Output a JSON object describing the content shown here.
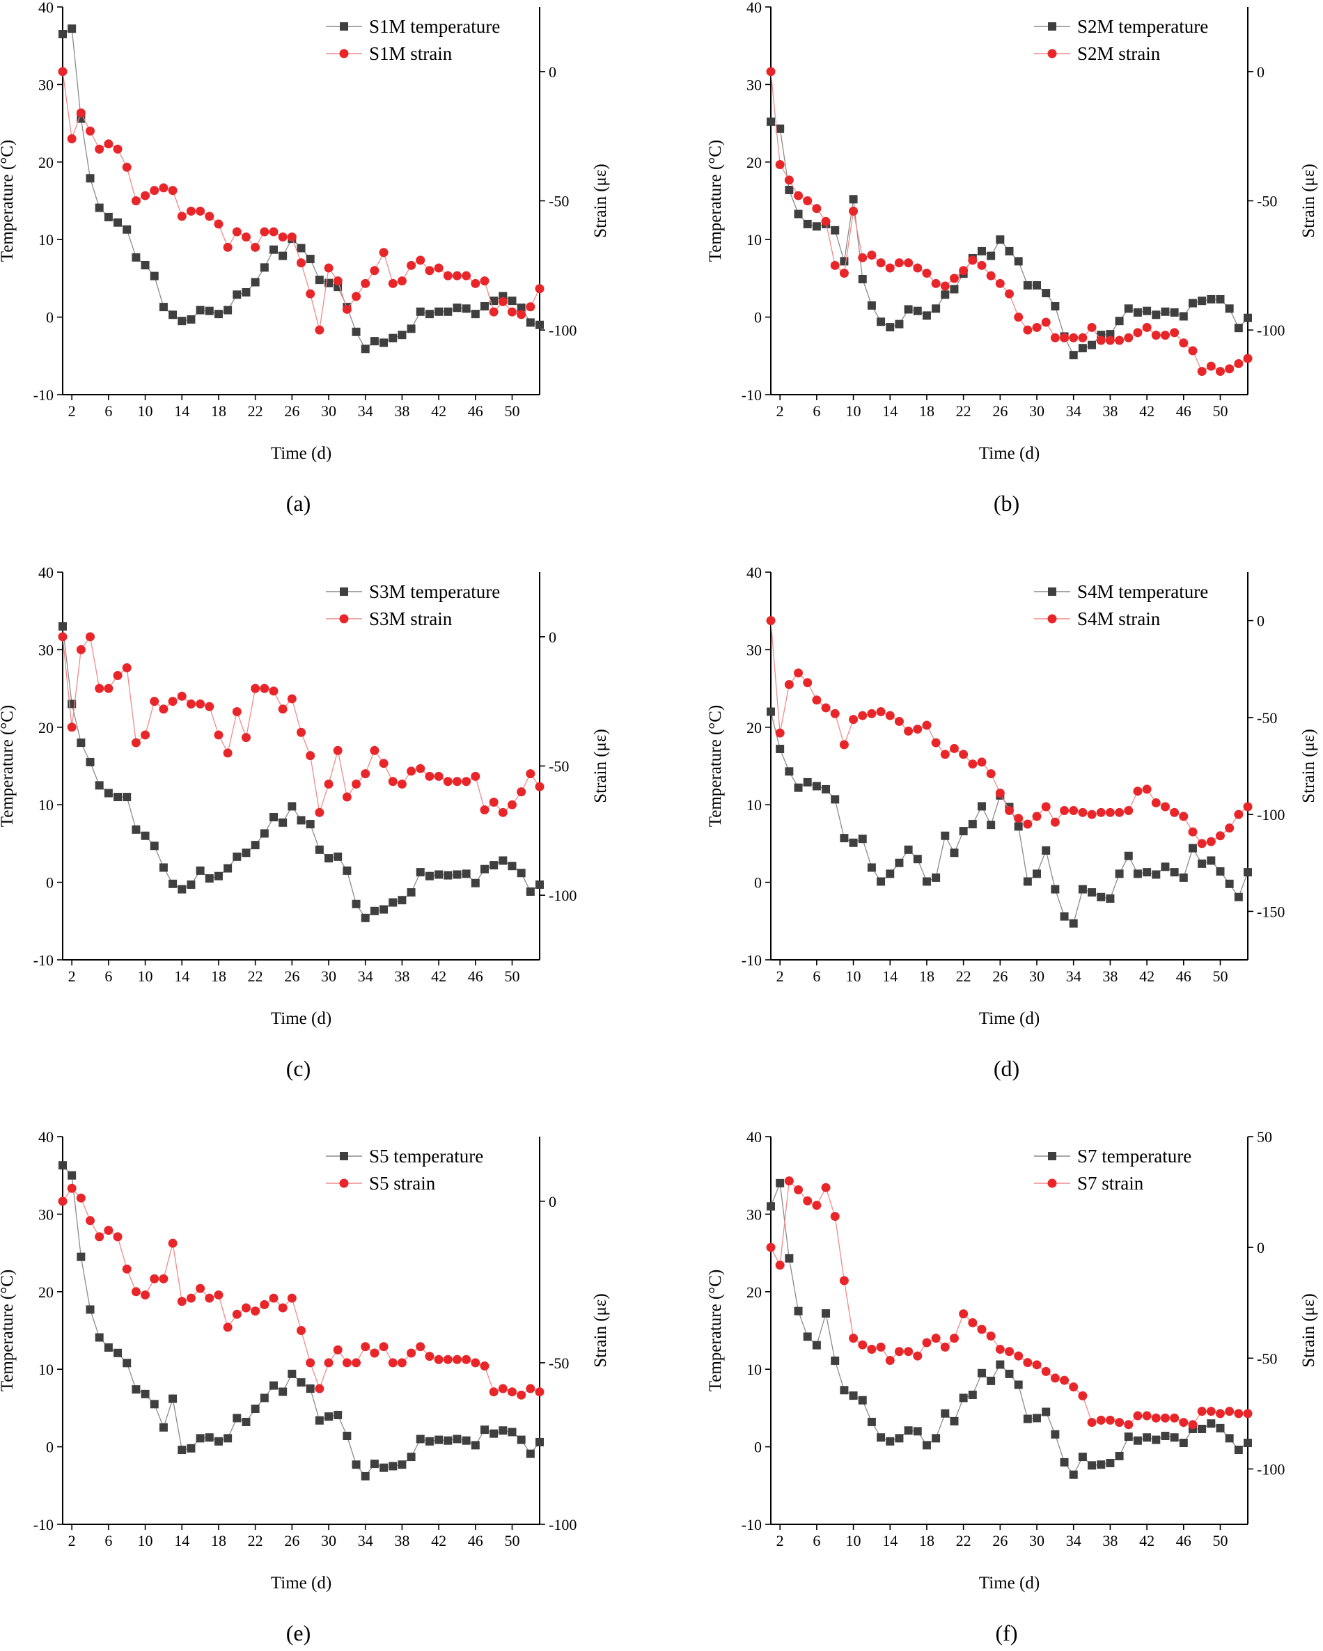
{
  "chart_data": [
    {
      "type": "line",
      "panel_label": "(a)",
      "xlabel": "Time (d)",
      "ylabel_left": "Temperature (°C)",
      "ylabel_right": "Strain (με)",
      "xlim": [
        1,
        53
      ],
      "x_ticks": [
        2,
        6,
        10,
        14,
        18,
        22,
        26,
        30,
        34,
        38,
        42,
        46,
        50
      ],
      "ylim_left": [
        -10,
        40
      ],
      "y_ticks_left": [
        -10,
        0,
        10,
        20,
        30,
        40
      ],
      "ylim_right": [
        -125,
        25
      ],
      "y_ticks_right": [
        -100,
        -50,
        0
      ],
      "legend_position": "top-right",
      "series": [
        {
          "name": "S1M temperature",
          "axis": "left",
          "color": "#3f3f3f",
          "marker": "square",
          "values": [
            36.5,
            37.2,
            25.6,
            17.9,
            14.1,
            12.9,
            12.2,
            11.3,
            7.7,
            6.7,
            5.3,
            1.3,
            0.3,
            -0.5,
            -0.3,
            0.9,
            0.8,
            0.4,
            0.9,
            2.9,
            3.2,
            4.5,
            6.4,
            8.7,
            7.9,
            10.1,
            8.9,
            7.5,
            4.8,
            4.4,
            3.9,
            1.3,
            -1.9,
            -4.1,
            -3.1,
            -3.3,
            -2.7,
            -2.3,
            -1.5,
            0.7,
            0.4,
            0.7,
            0.7,
            1.2,
            1.1,
            0.4,
            1.4,
            2.1,
            2.7,
            2.1,
            1.2,
            -0.7,
            -1.0
          ]
        },
        {
          "name": "S1M strain",
          "axis": "right",
          "color": "#e8262a",
          "marker": "circle",
          "values": [
            0,
            -26,
            -16,
            -23,
            -30,
            -28,
            -30,
            -37,
            -50,
            -48,
            -46,
            -45,
            -46,
            -56,
            -54,
            -54,
            -56,
            -59,
            -68,
            -62,
            -64,
            -68,
            -62,
            -62,
            -64,
            -64,
            -74,
            -86,
            -100,
            -76,
            -81,
            -92,
            -87,
            -82,
            -77,
            -70,
            -82,
            -81,
            -75,
            -73,
            -77,
            -76,
            -79,
            -79,
            -79,
            -82,
            -81,
            -93,
            -89,
            -93,
            -94,
            -91,
            -84
          ]
        }
      ]
    },
    {
      "type": "line",
      "panel_label": "(b)",
      "xlabel": "Time (d)",
      "ylabel_left": "Temperature (°C)",
      "ylabel_right": "Strain (με)",
      "xlim": [
        1,
        53
      ],
      "x_ticks": [
        2,
        6,
        10,
        14,
        18,
        22,
        26,
        30,
        34,
        38,
        42,
        46,
        50
      ],
      "ylim_left": [
        -10,
        40
      ],
      "y_ticks_left": [
        -10,
        0,
        10,
        20,
        30,
        40
      ],
      "ylim_right": [
        -125,
        25
      ],
      "y_ticks_right": [
        -100,
        -50,
        0
      ],
      "legend_position": "top-right",
      "series": [
        {
          "name": "S2M temperature",
          "axis": "left",
          "color": "#3f3f3f",
          "marker": "square",
          "values": [
            25.2,
            24.3,
            16.4,
            13.3,
            12.0,
            11.7,
            12.0,
            11.2,
            7.2,
            15.2,
            4.9,
            1.5,
            -0.6,
            -1.3,
            -0.9,
            1.0,
            0.8,
            0.2,
            1.1,
            2.9,
            3.6,
            5.6,
            7.6,
            8.5,
            7.9,
            10.0,
            8.5,
            7.2,
            4.1,
            4.1,
            3.1,
            1.4,
            -2.5,
            -4.9,
            -4.0,
            -3.6,
            -2.3,
            -2.2,
            -0.5,
            1.1,
            0.6,
            0.8,
            0.3,
            0.7,
            0.6,
            0.1,
            1.8,
            2.1,
            2.3,
            2.3,
            1.1,
            -1.4,
            -0.1
          ]
        },
        {
          "name": "S2M strain",
          "axis": "right",
          "color": "#e8262a",
          "marker": "circle",
          "values": [
            0,
            -36,
            -42,
            -48,
            -50,
            -53,
            -58,
            -75,
            -78,
            -54,
            -72,
            -71,
            -74,
            -76,
            -74,
            -74,
            -76,
            -78,
            -82,
            -83,
            -80,
            -77,
            -73,
            -75,
            -79,
            -82,
            -86,
            -95,
            -100,
            -99,
            -97,
            -103,
            -103,
            -103,
            -103,
            -99,
            -104,
            -104,
            -104,
            -103,
            -101,
            -99,
            -102,
            -102,
            -101,
            -105,
            -108,
            -116,
            -114,
            -116,
            -115,
            -113,
            -111
          ]
        }
      ]
    },
    {
      "type": "line",
      "panel_label": "(c)",
      "xlabel": "Time (d)",
      "ylabel_left": "Temperature (°C)",
      "ylabel_right": "Strain (με)",
      "xlim": [
        1,
        53
      ],
      "x_ticks": [
        2,
        6,
        10,
        14,
        18,
        22,
        26,
        30,
        34,
        38,
        42,
        46,
        50
      ],
      "ylim_left": [
        -10,
        40
      ],
      "y_ticks_left": [
        -10,
        0,
        10,
        20,
        30,
        40
      ],
      "ylim_right": [
        -125,
        25
      ],
      "y_ticks_right": [
        -100,
        -50,
        0
      ],
      "legend_position": "top-right",
      "series": [
        {
          "name": "S3M temperature",
          "axis": "left",
          "color": "#3f3f3f",
          "marker": "square",
          "values": [
            33.0,
            23.0,
            18.0,
            15.5,
            12.5,
            11.5,
            11.0,
            11.0,
            6.8,
            6.0,
            4.7,
            1.9,
            -0.2,
            -0.9,
            -0.3,
            1.5,
            0.5,
            0.8,
            1.8,
            3.3,
            3.8,
            4.8,
            6.3,
            8.4,
            7.7,
            9.8,
            8.0,
            7.5,
            4.2,
            3.1,
            3.3,
            1.5,
            -2.8,
            -4.6,
            -3.7,
            -3.5,
            -2.6,
            -2.3,
            -1.3,
            1.3,
            0.8,
            1.0,
            0.9,
            1.0,
            1.1,
            -0.1,
            1.7,
            2.2,
            2.8,
            2.1,
            1.2,
            -1.2,
            -0.3
          ]
        },
        {
          "name": "S3M strain",
          "axis": "right",
          "color": "#e8262a",
          "marker": "circle",
          "values": [
            0,
            -35,
            -5,
            0,
            -20,
            -20,
            -15,
            -12,
            -41,
            -38,
            -25,
            -28,
            -25,
            -23,
            -26,
            -26,
            -27,
            -38,
            -45,
            -29,
            -39,
            -20,
            -20,
            -21,
            -28,
            -24,
            -37,
            -46,
            -68,
            -57,
            -44,
            -62,
            -57,
            -53,
            -44,
            -49,
            -56,
            -57,
            -52,
            -51,
            -54,
            -54,
            -56,
            -56,
            -56,
            -54,
            -67,
            -64,
            -68,
            -65,
            -60,
            -53,
            -58
          ]
        }
      ]
    },
    {
      "type": "line",
      "panel_label": "(d)",
      "xlabel": "Time (d)",
      "ylabel_left": "Temperature (°C)",
      "ylabel_right": "Strain (με)",
      "xlim": [
        1,
        53
      ],
      "x_ticks": [
        2,
        6,
        10,
        14,
        18,
        22,
        26,
        30,
        34,
        38,
        42,
        46,
        50
      ],
      "ylim_left": [
        -10,
        40
      ],
      "y_ticks_left": [
        -10,
        0,
        10,
        20,
        30,
        40
      ],
      "ylim_right": [
        -175,
        25
      ],
      "y_ticks_right": [
        -150,
        -100,
        -50,
        0
      ],
      "legend_position": "top-right",
      "series": [
        {
          "name": "S4M temperature",
          "axis": "left",
          "color": "#3f3f3f",
          "marker": "square",
          "values": [
            22.0,
            17.2,
            14.3,
            12.2,
            12.9,
            12.4,
            12.0,
            10.7,
            5.7,
            5.1,
            5.6,
            1.9,
            0.1,
            1.1,
            2.5,
            4.2,
            3.0,
            0.1,
            0.6,
            6.0,
            3.8,
            6.6,
            7.5,
            9.8,
            7.4,
            11.2,
            9.7,
            7.2,
            0.1,
            1.1,
            4.1,
            -0.9,
            -4.4,
            -5.3,
            -0.9,
            -1.3,
            -1.9,
            -2.1,
            1.1,
            3.4,
            1.1,
            1.3,
            1.0,
            2.0,
            1.3,
            0.6,
            4.4,
            2.4,
            2.8,
            1.4,
            -0.2,
            -1.9,
            1.3
          ]
        },
        {
          "name": "S4M strain",
          "axis": "right",
          "color": "#e8262a",
          "marker": "circle",
          "values": [
            0,
            -58,
            -33,
            -27,
            -32,
            -41,
            -45,
            -48,
            -64,
            -51,
            -49,
            -48,
            -47,
            -49,
            -52,
            -57,
            -56,
            -54,
            -63,
            -69,
            -66,
            -69,
            -74,
            -73,
            -79,
            -89,
            -98,
            -102,
            -105,
            -101,
            -96,
            -104,
            -98,
            -98,
            -99,
            -100,
            -99,
            -99,
            -99,
            -98,
            -88,
            -87,
            -94,
            -96,
            -99,
            -101,
            -109,
            -115,
            -114,
            -111,
            -107,
            -100,
            -96
          ]
        }
      ]
    },
    {
      "type": "line",
      "panel_label": "(e)",
      "xlabel": "Time (d)",
      "ylabel_left": "Temperature (°C)",
      "ylabel_right": "Strain (με)",
      "xlim": [
        1,
        53
      ],
      "x_ticks": [
        2,
        6,
        10,
        14,
        18,
        22,
        26,
        30,
        34,
        38,
        42,
        46,
        50
      ],
      "ylim_left": [
        -10,
        40
      ],
      "y_ticks_left": [
        -10,
        0,
        10,
        20,
        30,
        40
      ],
      "ylim_right": [
        -100,
        20
      ],
      "y_ticks_right": [
        -100,
        -50,
        0
      ],
      "legend_position": "top-right",
      "series": [
        {
          "name": "S5 temperature",
          "axis": "left",
          "color": "#3f3f3f",
          "marker": "square",
          "values": [
            36.3,
            35.0,
            24.5,
            17.7,
            14.1,
            12.8,
            12.1,
            10.8,
            7.4,
            6.8,
            5.5,
            2.5,
            6.2,
            -0.4,
            -0.2,
            1.1,
            1.2,
            0.7,
            1.1,
            3.7,
            3.2,
            4.9,
            6.3,
            7.9,
            7.1,
            9.4,
            8.3,
            7.5,
            3.4,
            3.9,
            4.1,
            1.4,
            -2.3,
            -3.8,
            -2.2,
            -2.7,
            -2.5,
            -2.3,
            -1.3,
            1.0,
            0.7,
            0.9,
            0.8,
            1.0,
            0.8,
            0.2,
            2.2,
            1.7,
            2.1,
            1.9,
            0.9,
            -0.9,
            0.6
          ]
        },
        {
          "name": "S5 strain",
          "axis": "right",
          "color": "#e8262a",
          "marker": "circle",
          "values": [
            0,
            4,
            1,
            -6,
            -11,
            -9,
            -11,
            -21,
            -28,
            -29,
            -24,
            -24,
            -13,
            -31,
            -30,
            -27,
            -30,
            -29,
            -39,
            -35,
            -33,
            -34,
            -32,
            -30,
            -33,
            -30,
            -40,
            -50,
            -58,
            -50,
            -46,
            -50,
            -50,
            -45,
            -47,
            -45,
            -50,
            -50,
            -47,
            -45,
            -48,
            -49,
            -49,
            -49,
            -49,
            -50,
            -51,
            -59,
            -58,
            -59,
            -60,
            -58,
            -59
          ]
        }
      ]
    },
    {
      "type": "line",
      "panel_label": "(f)",
      "xlabel": "Time (d)",
      "ylabel_left": "Temperature (°C)",
      "ylabel_right": "Strain (με)",
      "xlim": [
        1,
        53
      ],
      "x_ticks": [
        2,
        6,
        10,
        14,
        18,
        22,
        26,
        30,
        34,
        38,
        42,
        46,
        50
      ],
      "ylim_left": [
        -10,
        40
      ],
      "y_ticks_left": [
        -10,
        0,
        10,
        20,
        30,
        40
      ],
      "ylim_right": [
        -125,
        50
      ],
      "y_ticks_right": [
        -100,
        -50,
        0,
        50
      ],
      "legend_position": "top-right",
      "series": [
        {
          "name": "S7 temperature",
          "axis": "left",
          "color": "#3f3f3f",
          "marker": "square",
          "values": [
            31.0,
            34.0,
            24.3,
            17.5,
            14.2,
            13.1,
            17.2,
            11.1,
            7.3,
            6.6,
            6.0,
            3.2,
            1.2,
            0.7,
            1.1,
            2.1,
            2.0,
            0.2,
            1.1,
            4.3,
            3.3,
            6.3,
            6.7,
            9.5,
            8.5,
            10.6,
            9.4,
            8.0,
            3.6,
            3.7,
            4.5,
            1.6,
            -2.0,
            -3.6,
            -1.3,
            -2.4,
            -2.3,
            -2.1,
            -1.2,
            1.3,
            0.8,
            1.2,
            0.9,
            1.4,
            1.2,
            0.5,
            2.3,
            2.3,
            3.0,
            2.4,
            1.1,
            -0.4,
            0.5
          ]
        },
        {
          "name": "S7 strain",
          "axis": "right",
          "color": "#e8262a",
          "marker": "circle",
          "values": [
            0,
            -8,
            30,
            26,
            21,
            19,
            27,
            14,
            -15,
            -41,
            -44,
            -46,
            -45,
            -51,
            -47,
            -47,
            -49,
            -43,
            -41,
            -45,
            -41,
            -30,
            -34,
            -37,
            -40,
            -46,
            -47,
            -49,
            -52,
            -53,
            -56,
            -59,
            -60,
            -63,
            -67,
            -79,
            -78,
            -78,
            -79,
            -80,
            -76,
            -76,
            -77,
            -77,
            -77,
            -79,
            -80,
            -74,
            -74,
            -75,
            -74,
            -75,
            -75
          ]
        }
      ]
    }
  ]
}
